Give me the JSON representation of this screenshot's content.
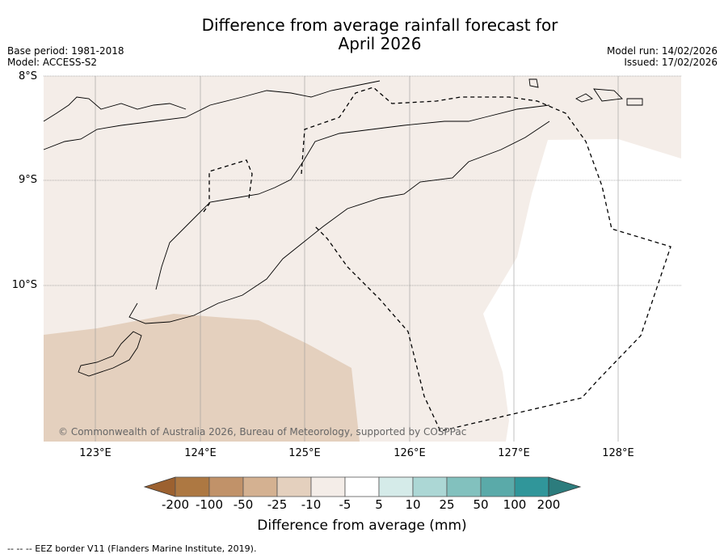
{
  "title_line1": "Difference from average rainfall forecast for",
  "title_line2": "April 2026",
  "base_period": "Base period: 1981-2018",
  "model": "Model: ACCESS-S2",
  "model_run": "Model run: 14/02/2026",
  "issued": "Issued: 17/02/2026",
  "lat_labels": [
    "8°S",
    "9°S",
    "10°S"
  ],
  "lon_labels": [
    "123°E",
    "124°E",
    "125°E",
    "126°E",
    "127°E",
    "128°E"
  ],
  "copyright": "© Commonwealth of Australia 2026, Bureau of Meteorology, supported by COSPPac",
  "colorbar": {
    "ticks": [
      "-200",
      "-100",
      "-50",
      "-25",
      "-10",
      "-5",
      "5",
      "10",
      "25",
      "50",
      "100",
      "200"
    ],
    "colors": [
      "#ad7842",
      "#c19269",
      "#d4b191",
      "#e4d0be",
      "#f4ede8",
      "#ffffff",
      "#d5ebe9",
      "#acd7d5",
      "#82c1be",
      "#5aaaa9",
      "#30969a"
    ],
    "under_color": "#9c6130",
    "over_color": "#2c7c7d",
    "title": "Difference from average (mm)"
  },
  "legend_text": "--  --  -- EEZ border V11 (Flanders Marine Institute, 2019)."
}
